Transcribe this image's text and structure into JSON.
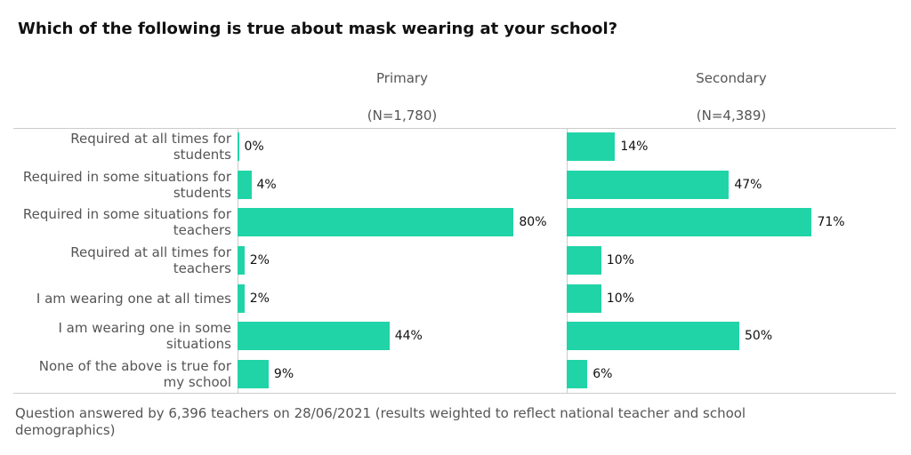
{
  "chart_data": {
    "type": "bar",
    "orientation": "horizontal",
    "title": "Which of the following is true about mask wearing at your school?",
    "categories": [
      "Required at all times for students",
      "Required in some situations for students",
      "Required in some situations for teachers",
      "Required at all times for teachers",
      "I am wearing one at all times",
      "I am wearing one in some situations",
      "None of the above is true for my school"
    ],
    "series": [
      {
        "name": "Primary",
        "subtitle": "(N=1,780)",
        "color": "#21d4a7",
        "values": [
          0,
          4,
          80,
          2,
          2,
          44,
          9
        ],
        "value_labels": [
          "0%",
          "4%",
          "80%",
          "2%",
          "2%",
          "44%",
          "9%"
        ]
      },
      {
        "name": "Secondary",
        "subtitle": "(N=4,389)",
        "color": "#21d4a7",
        "values": [
          14,
          47,
          71,
          10,
          10,
          50,
          6
        ],
        "value_labels": [
          "14%",
          "47%",
          "71%",
          "10%",
          "10%",
          "50%",
          "6%"
        ]
      }
    ],
    "note": "Question answered by 6,396 teachers on 28/06/2021 (results weighted to reflect national teacher and school demographics)"
  }
}
